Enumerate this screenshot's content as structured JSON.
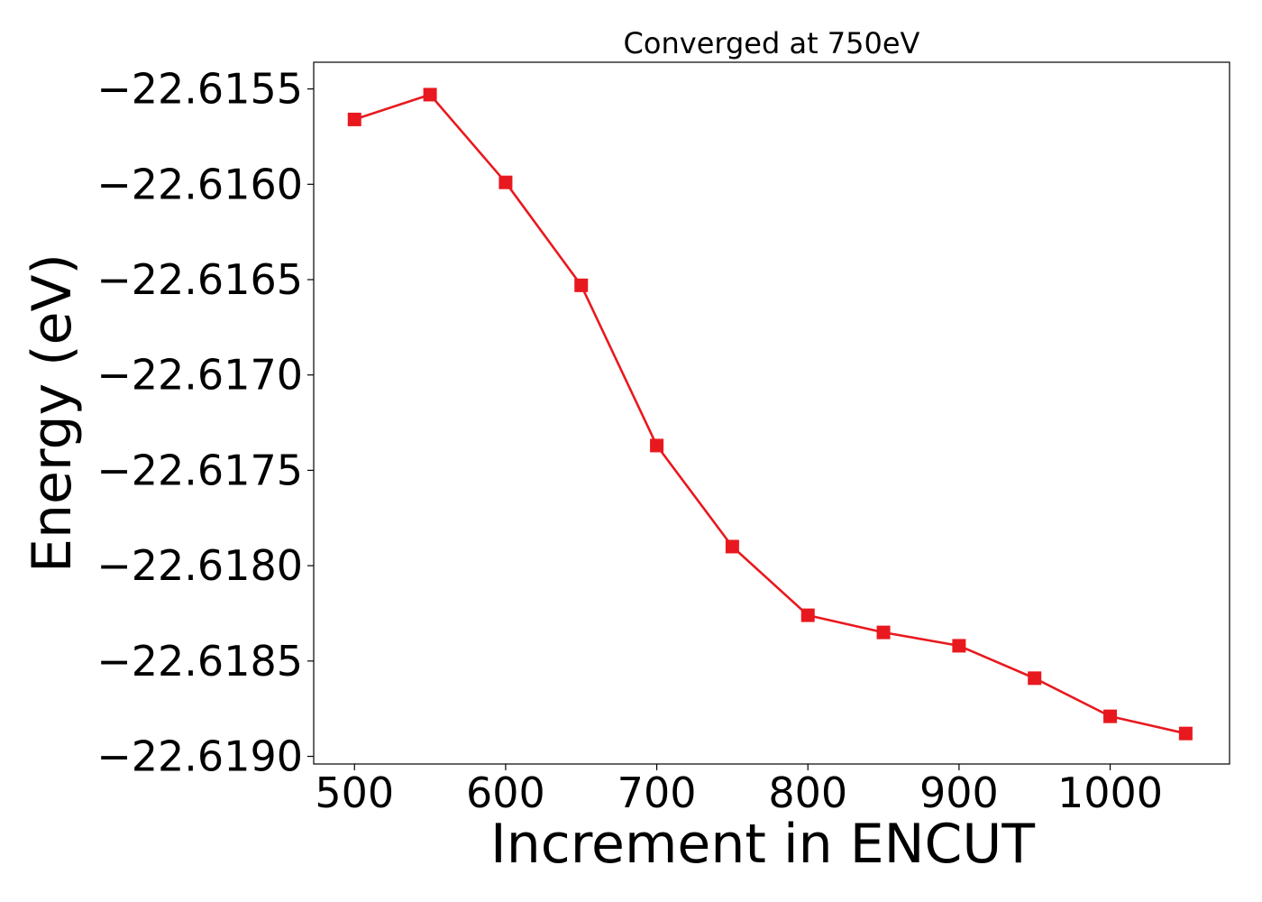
{
  "chart_data": {
    "type": "line",
    "title": "Converged at 750eV",
    "xlabel": "Increment in ENCUT",
    "ylabel": "Energy (eV)",
    "x": [
      500,
      550,
      600,
      650,
      700,
      750,
      800,
      850,
      900,
      950,
      1000,
      1050
    ],
    "series": [
      {
        "color": "#e8191e",
        "marker": "square",
        "values": [
          -22.61566,
          -22.61553,
          -22.61599,
          -22.61653,
          -22.61737,
          -22.6179,
          -22.61826,
          -22.61835,
          -22.61842,
          -22.61859,
          -22.61879,
          -22.61888
        ]
      }
    ],
    "xlim": [
      473,
      1079
    ],
    "ylim": [
      -22.61904,
      -22.61536
    ],
    "x_ticks": [
      500,
      600,
      700,
      800,
      900,
      1000
    ],
    "x_tick_labels": [
      "500",
      "600",
      "700",
      "800",
      "900",
      "1000"
    ],
    "y_ticks": [
      -22.6155,
      -22.616,
      -22.6165,
      -22.617,
      -22.6175,
      -22.618,
      -22.6185,
      -22.619
    ],
    "y_tick_labels": [
      "−22.6155",
      "−22.6160",
      "−22.6165",
      "−22.6170",
      "−22.6175",
      "−22.6180",
      "−22.6185",
      "−22.6190"
    ],
    "grid": false,
    "legend": "none"
  }
}
